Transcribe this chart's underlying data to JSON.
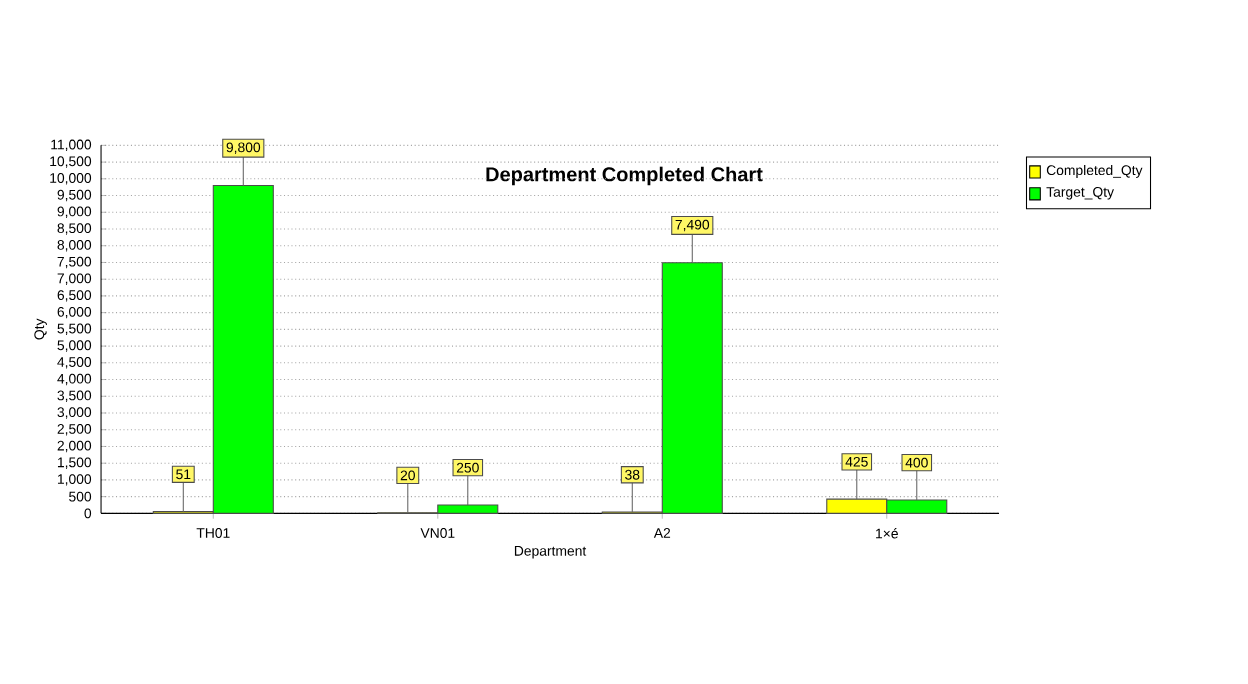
{
  "chart_data": {
    "type": "bar",
    "title": "Department Completed Chart",
    "xlabel": "Department",
    "ylabel": "Qty",
    "categories": [
      "TH01",
      "VN01",
      "A2",
      "1×é"
    ],
    "series": [
      {
        "name": "Completed_Qty",
        "color": "#ffff00",
        "values": [
          51,
          20,
          38,
          425
        ],
        "value_labels": [
          "51",
          "20",
          "38",
          "425"
        ]
      },
      {
        "name": "Target_Qty",
        "color": "#00ff00",
        "values": [
          9800,
          250,
          7490,
          400
        ],
        "value_labels": [
          "9,800",
          "250",
          "7,490",
          "400"
        ]
      }
    ],
    "ylim": [
      0,
      11000
    ],
    "yticks": [
      0,
      500,
      {
        "value": 1000,
        "label": "1,000"
      },
      {
        "value": 1500,
        "label": "1,500"
      },
      {
        "value": 2000,
        "label": "2,000"
      },
      {
        "value": 2500,
        "label": "2,500"
      },
      {
        "value": 3000,
        "label": "3,000"
      },
      {
        "value": 3500,
        "label": "3,500"
      },
      {
        "value": 4000,
        "label": "4,000"
      },
      {
        "value": 4500,
        "label": "4,500"
      },
      {
        "value": 5000,
        "label": "5,000"
      },
      {
        "value": 5500,
        "label": "5,500"
      },
      {
        "value": 6000,
        "label": "6,000"
      },
      {
        "value": 6500,
        "label": "6,500"
      },
      {
        "value": 7000,
        "label": "7,000"
      },
      {
        "value": 7500,
        "label": "7,500"
      },
      {
        "value": 8000,
        "label": "8,000"
      },
      {
        "value": 8500,
        "label": "8,500"
      },
      {
        "value": 9000,
        "label": "9,000"
      },
      {
        "value": 9500,
        "label": "9,500"
      },
      {
        "value": 10000,
        "label": "10,000"
      },
      {
        "value": 10500,
        "label": "10,500"
      },
      {
        "value": 11000,
        "label": "11,000"
      }
    ],
    "grid": "y",
    "legend": "top right"
  }
}
